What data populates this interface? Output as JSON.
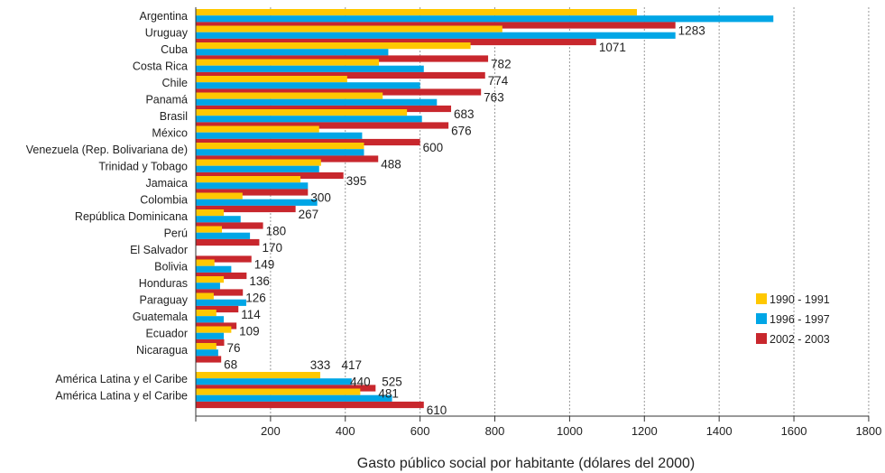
{
  "chart_data": {
    "type": "bar",
    "orientation": "horizontal",
    "title": "",
    "xlabel": "Gasto público social por habitante (dólares del 2000)",
    "ylabel": "",
    "xlim": [
      0,
      1800
    ],
    "xticks": [
      200,
      400,
      600,
      800,
      1000,
      1200,
      1400,
      1600,
      1800
    ],
    "grid": "vertical dotted",
    "legend_position": "right",
    "categories": [
      "Argentina",
      "Uruguay",
      "Cuba",
      "Costa Rica",
      "Chile",
      "Panamá",
      "Brasil",
      "México",
      "Venezuela (Rep. Bolivariana de)",
      "Trinidad y Tobago",
      "Jamaica",
      "Colombia",
      "República Dominicana",
      "Perú",
      "El Salvador",
      "Bolivia",
      "Honduras",
      "Paraguay",
      "Guatemala",
      "Ecuador",
      "Nicaragua",
      "América Latina y el Caribe",
      "América Latina y el Caribe"
    ],
    "series": [
      {
        "name": "1990 - 1991",
        "color": "#FFC800",
        "values": [
          1180,
          820,
          735,
          490,
          405,
          500,
          565,
          330,
          450,
          335,
          280,
          125,
          75,
          70,
          null,
          50,
          75,
          48,
          55,
          95,
          55,
          333,
          440
        ]
      },
      {
        "name": "1996 - 1997",
        "color": "#00A6E6",
        "values": [
          1545,
          1283,
          515,
          610,
          600,
          645,
          605,
          445,
          450,
          330,
          300,
          325,
          120,
          145,
          null,
          95,
          65,
          135,
          75,
          75,
          60,
          417,
          525
        ]
      },
      {
        "name": "2002 - 2003",
        "color": "#C8272D",
        "values": [
          1283,
          1071,
          782,
          774,
          763,
          683,
          676,
          600,
          488,
          395,
          300,
          267,
          180,
          170,
          149,
          136,
          126,
          114,
          109,
          76,
          68,
          481,
          610
        ]
      }
    ],
    "data_labels": [
      "1283",
      "1071",
      "782",
      "774",
      "763",
      "683",
      "676",
      "600",
      "488",
      "395",
      "300",
      "267",
      "180",
      "170",
      "149",
      "136",
      "126",
      "114",
      "109",
      "76",
      "68",
      "481",
      "610"
    ],
    "total_labels": [
      {
        "series": "1990 - 1991",
        "text": "333"
      },
      {
        "series": "1996 - 1997",
        "text": "417"
      },
      {
        "series": "1990 - 1991",
        "text": "440"
      },
      {
        "series": "1996 - 1997",
        "text": "525"
      }
    ]
  }
}
